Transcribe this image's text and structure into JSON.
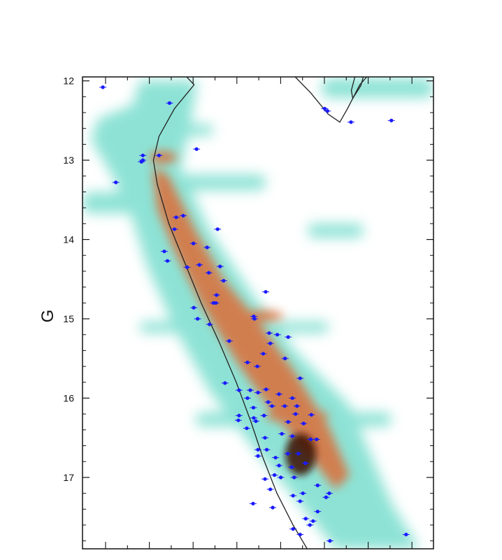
{
  "chart_data": {
    "type": "scatter",
    "title": "",
    "xlabel": "",
    "ylabel": "G",
    "ylim": [
      17.9,
      11.95
    ],
    "xlim": [
      0,
      1
    ],
    "y_inverted": true,
    "yticks": [
      {
        "value": 12,
        "label": "12"
      },
      {
        "value": 13,
        "label": "13"
      },
      {
        "value": 14,
        "label": "14"
      },
      {
        "value": 15,
        "label": "15"
      },
      {
        "value": 16,
        "label": "16"
      },
      {
        "value": 17,
        "label": "17"
      }
    ],
    "grid": false,
    "colors": {
      "points": "#1a1aff",
      "isochrone": "#222222",
      "density_low": "#56d6c4",
      "density_mid": "#e8552a",
      "density_high": "#3a0d05"
    },
    "series": [
      {
        "type": "line",
        "points": [
          {
            "x": 0.297,
            "y": 11.95
          },
          {
            "x": 0.318,
            "y": 12.05
          },
          {
            "x": 0.262,
            "y": 12.35
          },
          {
            "x": 0.218,
            "y": 12.7
          },
          {
            "x": 0.202,
            "y": 13.0
          },
          {
            "x": 0.213,
            "y": 13.3
          },
          {
            "x": 0.246,
            "y": 13.8
          },
          {
            "x": 0.292,
            "y": 14.3
          },
          {
            "x": 0.338,
            "y": 14.8
          },
          {
            "x": 0.39,
            "y": 15.3
          },
          {
            "x": 0.438,
            "y": 15.8
          },
          {
            "x": 0.48,
            "y": 16.3
          },
          {
            "x": 0.514,
            "y": 16.75
          },
          {
            "x": 0.554,
            "y": 17.2
          },
          {
            "x": 0.6,
            "y": 17.6
          },
          {
            "x": 0.64,
            "y": 17.9
          }
        ]
      },
      {
        "type": "line",
        "points": [
          {
            "x": 0.606,
            "y": 11.95
          },
          {
            "x": 0.65,
            "y": 12.15
          },
          {
            "x": 0.7,
            "y": 12.42
          },
          {
            "x": 0.733,
            "y": 12.52
          },
          {
            "x": 0.755,
            "y": 12.35
          },
          {
            "x": 0.79,
            "y": 12.05
          },
          {
            "x": 0.81,
            "y": 11.95
          }
        ]
      },
      {
        "type": "line",
        "points": [
          {
            "x": 0.776,
            "y": 11.95
          },
          {
            "x": 0.766,
            "y": 12.12
          },
          {
            "x": 0.77,
            "y": 12.22
          },
          {
            "x": 0.793,
            "y": 12.06
          },
          {
            "x": 0.8,
            "y": 11.95
          }
        ]
      },
      {
        "type": "scatter",
        "points": [
          {
            "x": 0.058,
            "y": 12.08
          },
          {
            "x": 0.248,
            "y": 12.28
          },
          {
            "x": 0.69,
            "y": 12.35
          },
          {
            "x": 0.698,
            "y": 12.38
          },
          {
            "x": 0.765,
            "y": 12.52
          },
          {
            "x": 0.88,
            "y": 12.5
          },
          {
            "x": 0.218,
            "y": 12.94
          },
          {
            "x": 0.325,
            "y": 12.86
          },
          {
            "x": 0.172,
            "y": 12.94
          },
          {
            "x": 0.168,
            "y": 13.02
          },
          {
            "x": 0.172,
            "y": 13.0
          },
          {
            "x": 0.095,
            "y": 13.28
          },
          {
            "x": 0.287,
            "y": 13.7
          },
          {
            "x": 0.267,
            "y": 13.72
          },
          {
            "x": 0.385,
            "y": 13.87
          },
          {
            "x": 0.262,
            "y": 13.87
          },
          {
            "x": 0.316,
            "y": 14.05
          },
          {
            "x": 0.355,
            "y": 14.1
          },
          {
            "x": 0.233,
            "y": 14.15
          },
          {
            "x": 0.333,
            "y": 14.32
          },
          {
            "x": 0.242,
            "y": 14.27
          },
          {
            "x": 0.392,
            "y": 14.34
          },
          {
            "x": 0.298,
            "y": 14.35
          },
          {
            "x": 0.36,
            "y": 14.42
          },
          {
            "x": 0.402,
            "y": 14.52
          },
          {
            "x": 0.382,
            "y": 14.7
          },
          {
            "x": 0.522,
            "y": 14.66
          },
          {
            "x": 0.373,
            "y": 14.8
          },
          {
            "x": 0.317,
            "y": 14.86
          },
          {
            "x": 0.38,
            "y": 14.8
          },
          {
            "x": 0.488,
            "y": 14.97
          },
          {
            "x": 0.49,
            "y": 15.0
          },
          {
            "x": 0.362,
            "y": 15.07
          },
          {
            "x": 0.328,
            "y": 15.0
          },
          {
            "x": 0.532,
            "y": 15.18
          },
          {
            "x": 0.555,
            "y": 15.2
          },
          {
            "x": 0.586,
            "y": 15.23
          },
          {
            "x": 0.418,
            "y": 15.28
          },
          {
            "x": 0.535,
            "y": 15.31
          },
          {
            "x": 0.515,
            "y": 15.44
          },
          {
            "x": 0.47,
            "y": 15.55
          },
          {
            "x": 0.498,
            "y": 15.6
          },
          {
            "x": 0.577,
            "y": 15.5
          },
          {
            "x": 0.62,
            "y": 15.75
          },
          {
            "x": 0.406,
            "y": 15.81
          },
          {
            "x": 0.446,
            "y": 15.9
          },
          {
            "x": 0.478,
            "y": 15.9
          },
          {
            "x": 0.5,
            "y": 15.93
          },
          {
            "x": 0.523,
            "y": 15.89
          },
          {
            "x": 0.56,
            "y": 15.95
          },
          {
            "x": 0.598,
            "y": 16.0
          },
          {
            "x": 0.611,
            "y": 16.1
          },
          {
            "x": 0.47,
            "y": 16.0
          },
          {
            "x": 0.487,
            "y": 16.12
          },
          {
            "x": 0.529,
            "y": 16.05
          },
          {
            "x": 0.54,
            "y": 16.1
          },
          {
            "x": 0.576,
            "y": 16.1
          },
          {
            "x": 0.446,
            "y": 16.22
          },
          {
            "x": 0.488,
            "y": 16.25
          },
          {
            "x": 0.517,
            "y": 16.22
          },
          {
            "x": 0.607,
            "y": 16.2
          },
          {
            "x": 0.652,
            "y": 16.21
          },
          {
            "x": 0.444,
            "y": 16.28
          },
          {
            "x": 0.494,
            "y": 16.29
          },
          {
            "x": 0.586,
            "y": 16.3
          },
          {
            "x": 0.63,
            "y": 16.32
          },
          {
            "x": 0.468,
            "y": 16.38
          },
          {
            "x": 0.52,
            "y": 16.5
          },
          {
            "x": 0.568,
            "y": 16.45
          },
          {
            "x": 0.598,
            "y": 16.48
          },
          {
            "x": 0.65,
            "y": 16.52
          },
          {
            "x": 0.667,
            "y": 16.52
          },
          {
            "x": 0.5,
            "y": 16.65
          },
          {
            "x": 0.525,
            "y": 16.65
          },
          {
            "x": 0.585,
            "y": 16.7
          },
          {
            "x": 0.615,
            "y": 16.7
          },
          {
            "x": 0.5,
            "y": 16.73
          },
          {
            "x": 0.55,
            "y": 16.75
          },
          {
            "x": 0.56,
            "y": 16.85
          },
          {
            "x": 0.596,
            "y": 16.87
          },
          {
            "x": 0.635,
            "y": 16.82
          },
          {
            "x": 0.547,
            "y": 16.97
          },
          {
            "x": 0.565,
            "y": 17.0
          },
          {
            "x": 0.603,
            "y": 17.0
          },
          {
            "x": 0.52,
            "y": 17.02
          },
          {
            "x": 0.535,
            "y": 17.15
          },
          {
            "x": 0.6,
            "y": 17.23
          },
          {
            "x": 0.628,
            "y": 17.2
          },
          {
            "x": 0.67,
            "y": 17.1
          },
          {
            "x": 0.694,
            "y": 17.25
          },
          {
            "x": 0.703,
            "y": 17.2
          },
          {
            "x": 0.62,
            "y": 17.3
          },
          {
            "x": 0.486,
            "y": 17.33
          },
          {
            "x": 0.542,
            "y": 17.38
          },
          {
            "x": 0.67,
            "y": 17.43
          },
          {
            "x": 0.636,
            "y": 17.52
          },
          {
            "x": 0.657,
            "y": 17.55
          },
          {
            "x": 0.648,
            "y": 17.6
          },
          {
            "x": 0.6,
            "y": 17.65
          },
          {
            "x": 0.62,
            "y": 17.72
          },
          {
            "x": 0.705,
            "y": 17.8
          },
          {
            "x": 0.922,
            "y": 17.72
          },
          {
            "x": 0.975,
            "y": 17.93
          }
        ]
      }
    ]
  }
}
